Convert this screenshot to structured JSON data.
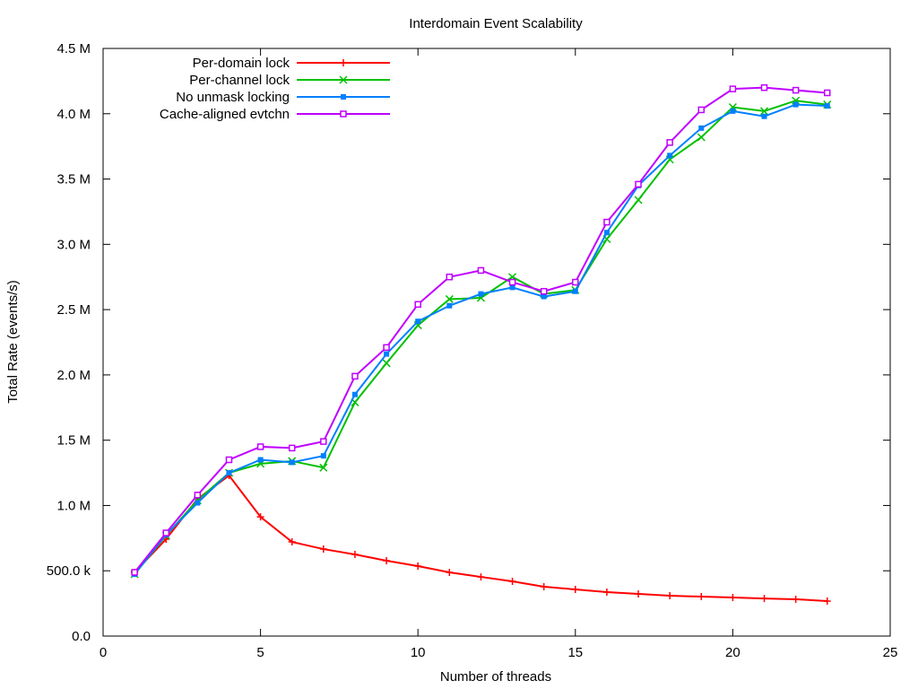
{
  "chart_data": {
    "type": "line",
    "title": "Interdomain Event Scalability",
    "xlabel": "Number of threads",
    "ylabel": "Total Rate (events/s)",
    "xlim": [
      0,
      25
    ],
    "ylim": [
      0,
      4500000
    ],
    "xticks": [
      0,
      5,
      10,
      15,
      20,
      25
    ],
    "xtick_labels": [
      "0",
      "5",
      "10",
      "15",
      "20",
      "25"
    ],
    "yticks": [
      0,
      500000,
      1000000,
      1500000,
      2000000,
      2500000,
      3000000,
      3500000,
      4000000,
      4500000
    ],
    "ytick_labels": [
      "0.0",
      "500.0 k",
      "1.0 M",
      "1.5 M",
      "2.0 M",
      "2.5 M",
      "3.0 M",
      "3.5 M",
      "4.0 M",
      "4.5 M"
    ],
    "grid": false,
    "legend_placement": "top-left",
    "x": [
      1,
      2,
      3,
      4,
      5,
      6,
      7,
      8,
      9,
      10,
      11,
      12,
      13,
      14,
      15,
      16,
      17,
      18,
      19,
      20,
      21,
      22,
      23
    ],
    "series": [
      {
        "name": "Per-domain lock",
        "color": "#ff0000",
        "marker": "plus",
        "values": [
          488000,
          742000,
          1050000,
          1230000,
          913000,
          721000,
          666000,
          625000,
          577000,
          536000,
          488000,
          453000,
          419000,
          378000,
          357000,
          337000,
          323000,
          309000,
          302000,
          295000,
          288000,
          282000,
          268000
        ]
      },
      {
        "name": "Per-channel lock",
        "color": "#00c000",
        "marker": "cross",
        "values": [
          474000,
          770000,
          1040000,
          1250000,
          1320000,
          1340000,
          1290000,
          1790000,
          2090000,
          2380000,
          2580000,
          2590000,
          2750000,
          2620000,
          2650000,
          3040000,
          3340000,
          3650000,
          3820000,
          4050000,
          4020000,
          4100000,
          4070000
        ]
      },
      {
        "name": "No unmask locking",
        "color": "#0080ff",
        "marker": "star",
        "values": [
          474000,
          776000,
          1020000,
          1250000,
          1350000,
          1330000,
          1380000,
          1850000,
          2160000,
          2410000,
          2530000,
          2620000,
          2670000,
          2600000,
          2640000,
          3090000,
          3450000,
          3680000,
          3890000,
          4020000,
          3980000,
          4070000,
          4060000
        ]
      },
      {
        "name": "Cache-aligned evtchn",
        "color": "#c000ff",
        "marker": "open-square",
        "values": [
          488000,
          790000,
          1080000,
          1350000,
          1450000,
          1440000,
          1490000,
          1990000,
          2210000,
          2540000,
          2750000,
          2800000,
          2710000,
          2640000,
          2710000,
          3170000,
          3460000,
          3780000,
          4030000,
          4190000,
          4200000,
          4180000,
          4160000
        ]
      }
    ]
  }
}
